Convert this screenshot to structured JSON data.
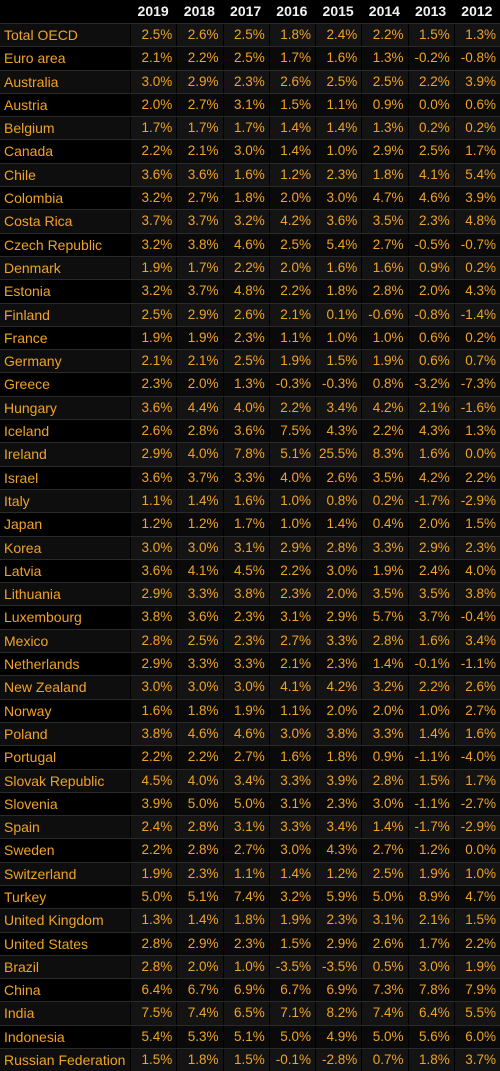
{
  "table": {
    "years": [
      "2019",
      "2018",
      "2017",
      "2016",
      "2015",
      "2014",
      "2013",
      "2012"
    ],
    "rows": [
      {
        "name": "Total OECD",
        "values": [
          "2.5%",
          "2.6%",
          "2.5%",
          "1.8%",
          "2.4%",
          "2.2%",
          "1.5%",
          "1.3%"
        ]
      },
      {
        "name": "Euro area",
        "values": [
          "2.1%",
          "2.2%",
          "2.5%",
          "1.7%",
          "1.6%",
          "1.3%",
          "-0.2%",
          "-0.8%"
        ]
      },
      {
        "name": "Australia",
        "values": [
          "3.0%",
          "2.9%",
          "2.3%",
          "2.6%",
          "2.5%",
          "2.5%",
          "2.2%",
          "3.9%"
        ]
      },
      {
        "name": "Austria",
        "values": [
          "2.0%",
          "2.7%",
          "3.1%",
          "1.5%",
          "1.1%",
          "0.9%",
          "0.0%",
          "0.6%"
        ]
      },
      {
        "name": "Belgium",
        "values": [
          "1.7%",
          "1.7%",
          "1.7%",
          "1.4%",
          "1.4%",
          "1.3%",
          "0.2%",
          "0.2%"
        ]
      },
      {
        "name": "Canada",
        "values": [
          "2.2%",
          "2.1%",
          "3.0%",
          "1.4%",
          "1.0%",
          "2.9%",
          "2.5%",
          "1.7%"
        ]
      },
      {
        "name": "Chile",
        "values": [
          "3.6%",
          "3.6%",
          "1.6%",
          "1.2%",
          "2.3%",
          "1.8%",
          "4.1%",
          "5.4%"
        ]
      },
      {
        "name": "Colombia",
        "values": [
          "3.2%",
          "2.7%",
          "1.8%",
          "2.0%",
          "3.0%",
          "4.7%",
          "4.6%",
          "3.9%"
        ]
      },
      {
        "name": "Costa Rica",
        "values": [
          "3.7%",
          "3.7%",
          "3.2%",
          "4.2%",
          "3.6%",
          "3.5%",
          "2.3%",
          "4.8%"
        ]
      },
      {
        "name": "Czech Republic",
        "values": [
          "3.2%",
          "3.8%",
          "4.6%",
          "2.5%",
          "5.4%",
          "2.7%",
          "-0.5%",
          "-0.7%"
        ]
      },
      {
        "name": "Denmark",
        "values": [
          "1.9%",
          "1.7%",
          "2.2%",
          "2.0%",
          "1.6%",
          "1.6%",
          "0.9%",
          "0.2%"
        ]
      },
      {
        "name": "Estonia",
        "values": [
          "3.2%",
          "3.7%",
          "4.8%",
          "2.2%",
          "1.8%",
          "2.8%",
          "2.0%",
          "4.3%"
        ]
      },
      {
        "name": "Finland",
        "values": [
          "2.5%",
          "2.9%",
          "2.6%",
          "2.1%",
          "0.1%",
          "-0.6%",
          "-0.8%",
          "-1.4%"
        ]
      },
      {
        "name": "France",
        "values": [
          "1.9%",
          "1.9%",
          "2.3%",
          "1.1%",
          "1.0%",
          "1.0%",
          "0.6%",
          "0.2%"
        ]
      },
      {
        "name": "Germany",
        "values": [
          "2.1%",
          "2.1%",
          "2.5%",
          "1.9%",
          "1.5%",
          "1.9%",
          "0.6%",
          "0.7%"
        ]
      },
      {
        "name": "Greece",
        "values": [
          "2.3%",
          "2.0%",
          "1.3%",
          "-0.3%",
          "-0.3%",
          "0.8%",
          "-3.2%",
          "-7.3%"
        ]
      },
      {
        "name": "Hungary",
        "values": [
          "3.6%",
          "4.4%",
          "4.0%",
          "2.2%",
          "3.4%",
          "4.2%",
          "2.1%",
          "-1.6%"
        ]
      },
      {
        "name": "Iceland",
        "values": [
          "2.6%",
          "2.8%",
          "3.6%",
          "7.5%",
          "4.3%",
          "2.2%",
          "4.3%",
          "1.3%"
        ]
      },
      {
        "name": "Ireland",
        "values": [
          "2.9%",
          "4.0%",
          "7.8%",
          "5.1%",
          "25.5%",
          "8.3%",
          "1.6%",
          "0.0%"
        ]
      },
      {
        "name": "Israel",
        "values": [
          "3.6%",
          "3.7%",
          "3.3%",
          "4.0%",
          "2.6%",
          "3.5%",
          "4.2%",
          "2.2%"
        ]
      },
      {
        "name": "Italy",
        "values": [
          "1.1%",
          "1.4%",
          "1.6%",
          "1.0%",
          "0.8%",
          "0.2%",
          "-1.7%",
          "-2.9%"
        ]
      },
      {
        "name": "Japan",
        "values": [
          "1.2%",
          "1.2%",
          "1.7%",
          "1.0%",
          "1.4%",
          "0.4%",
          "2.0%",
          "1.5%"
        ]
      },
      {
        "name": "Korea",
        "values": [
          "3.0%",
          "3.0%",
          "3.1%",
          "2.9%",
          "2.8%",
          "3.3%",
          "2.9%",
          "2.3%"
        ]
      },
      {
        "name": "Latvia",
        "values": [
          "3.6%",
          "4.1%",
          "4.5%",
          "2.2%",
          "3.0%",
          "1.9%",
          "2.4%",
          "4.0%"
        ]
      },
      {
        "name": "Lithuania",
        "values": [
          "2.9%",
          "3.3%",
          "3.8%",
          "2.3%",
          "2.0%",
          "3.5%",
          "3.5%",
          "3.8%"
        ]
      },
      {
        "name": "Luxembourg",
        "values": [
          "3.8%",
          "3.6%",
          "2.3%",
          "3.1%",
          "2.9%",
          "5.7%",
          "3.7%",
          "-0.4%"
        ]
      },
      {
        "name": "Mexico",
        "values": [
          "2.8%",
          "2.5%",
          "2.3%",
          "2.7%",
          "3.3%",
          "2.8%",
          "1.6%",
          "3.4%"
        ]
      },
      {
        "name": "Netherlands",
        "values": [
          "2.9%",
          "3.3%",
          "3.3%",
          "2.1%",
          "2.3%",
          "1.4%",
          "-0.1%",
          "-1.1%"
        ]
      },
      {
        "name": "New Zealand",
        "values": [
          "3.0%",
          "3.0%",
          "3.0%",
          "4.1%",
          "4.2%",
          "3.2%",
          "2.2%",
          "2.6%"
        ]
      },
      {
        "name": "Norway",
        "values": [
          "1.6%",
          "1.8%",
          "1.9%",
          "1.1%",
          "2.0%",
          "2.0%",
          "1.0%",
          "2.7%"
        ]
      },
      {
        "name": "Poland",
        "values": [
          "3.8%",
          "4.6%",
          "4.6%",
          "3.0%",
          "3.8%",
          "3.3%",
          "1.4%",
          "1.6%"
        ]
      },
      {
        "name": "Portugal",
        "values": [
          "2.2%",
          "2.2%",
          "2.7%",
          "1.6%",
          "1.8%",
          "0.9%",
          "-1.1%",
          "-4.0%"
        ]
      },
      {
        "name": "Slovak Republic",
        "values": [
          "4.5%",
          "4.0%",
          "3.4%",
          "3.3%",
          "3.9%",
          "2.8%",
          "1.5%",
          "1.7%"
        ]
      },
      {
        "name": "Slovenia",
        "values": [
          "3.9%",
          "5.0%",
          "5.0%",
          "3.1%",
          "2.3%",
          "3.0%",
          "-1.1%",
          "-2.7%"
        ]
      },
      {
        "name": "Spain",
        "values": [
          "2.4%",
          "2.8%",
          "3.1%",
          "3.3%",
          "3.4%",
          "1.4%",
          "-1.7%",
          "-2.9%"
        ]
      },
      {
        "name": "Sweden",
        "values": [
          "2.2%",
          "2.8%",
          "2.7%",
          "3.0%",
          "4.3%",
          "2.7%",
          "1.2%",
          "0.0%"
        ]
      },
      {
        "name": "Switzerland",
        "values": [
          "1.9%",
          "2.3%",
          "1.1%",
          "1.4%",
          "1.2%",
          "2.5%",
          "1.9%",
          "1.0%"
        ]
      },
      {
        "name": "Turkey",
        "values": [
          "5.0%",
          "5.1%",
          "7.4%",
          "3.2%",
          "5.9%",
          "5.0%",
          "8.9%",
          "4.7%"
        ]
      },
      {
        "name": "United Kingdom",
        "values": [
          "1.3%",
          "1.4%",
          "1.8%",
          "1.9%",
          "2.3%",
          "3.1%",
          "2.1%",
          "1.5%"
        ]
      },
      {
        "name": "United States",
        "values": [
          "2.8%",
          "2.9%",
          "2.3%",
          "1.5%",
          "2.9%",
          "2.6%",
          "1.7%",
          "2.2%"
        ]
      },
      {
        "name": "Brazil",
        "values": [
          "2.8%",
          "2.0%",
          "1.0%",
          "-3.5%",
          "-3.5%",
          "0.5%",
          "3.0%",
          "1.9%"
        ]
      },
      {
        "name": "China",
        "values": [
          "6.4%",
          "6.7%",
          "6.9%",
          "6.7%",
          "6.9%",
          "7.3%",
          "7.8%",
          "7.9%"
        ]
      },
      {
        "name": "India",
        "values": [
          "7.5%",
          "7.4%",
          "6.5%",
          "7.1%",
          "8.2%",
          "7.4%",
          "6.4%",
          "5.5%"
        ]
      },
      {
        "name": "Indonesia",
        "values": [
          "5.4%",
          "5.3%",
          "5.1%",
          "5.0%",
          "4.9%",
          "5.0%",
          "5.6%",
          "6.0%"
        ]
      },
      {
        "name": "Russian Federation",
        "values": [
          "1.5%",
          "1.8%",
          "1.5%",
          "-0.1%",
          "-2.8%",
          "0.7%",
          "1.8%",
          "3.7%"
        ]
      }
    ]
  },
  "colors": {
    "background": "#000000",
    "header_text": "#f2f2f2",
    "cell_text": "#f0a326"
  }
}
